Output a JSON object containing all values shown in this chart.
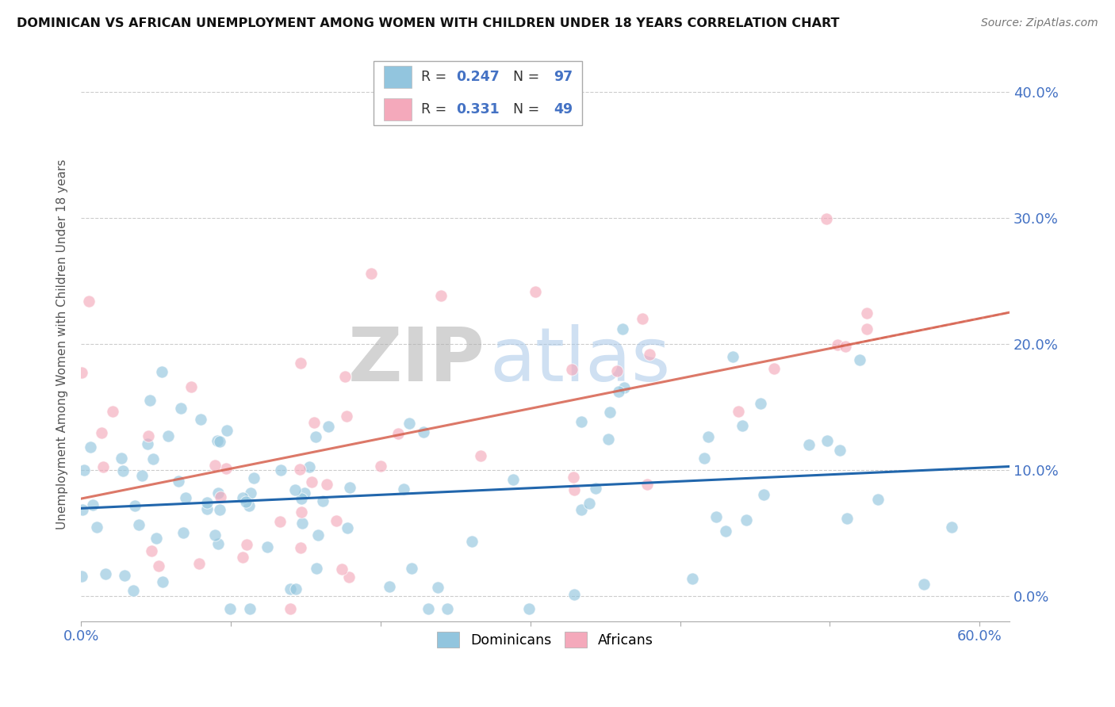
{
  "title": "DOMINICAN VS AFRICAN UNEMPLOYMENT AMONG WOMEN WITH CHILDREN UNDER 18 YEARS CORRELATION CHART",
  "source": "Source: ZipAtlas.com",
  "ylabel": "Unemployment Among Women with Children Under 18 years",
  "xlim": [
    0.0,
    0.62
  ],
  "ylim": [
    -0.02,
    0.42
  ],
  "dominicans_R": 0.247,
  "dominicans_N": 97,
  "africans_R": 0.331,
  "africans_N": 49,
  "blue_color": "#92c5de",
  "pink_color": "#f4a9bb",
  "blue_line_color": "#2166ac",
  "pink_line_color": "#d6604d",
  "watermark_zip": "ZIP",
  "watermark_atlas": "atlas",
  "background_color": "#ffffff",
  "tick_label_color": "#4472c4",
  "ytick_positions": [
    0.0,
    0.1,
    0.2,
    0.3,
    0.4
  ],
  "ytick_labels": [
    "0.0%",
    "10.0%",
    "20.0%",
    "30.0%",
    "40.0%"
  ],
  "xtick_positions": [
    0.0,
    0.1,
    0.2,
    0.3,
    0.4,
    0.5,
    0.6
  ],
  "xtick_labels": [
    "0.0%",
    "",
    "",
    "",
    "",
    "",
    "60.0%"
  ]
}
